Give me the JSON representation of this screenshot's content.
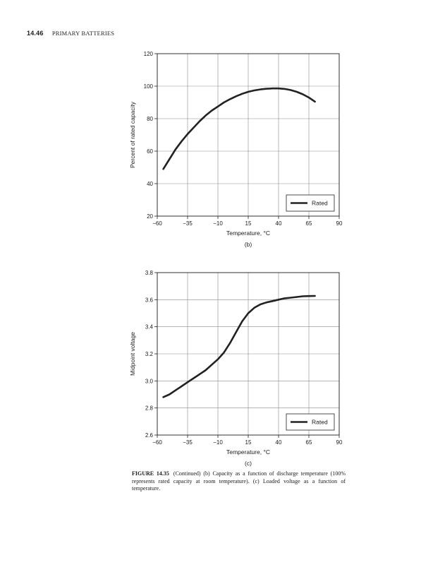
{
  "page": {
    "number": "14.46",
    "running_head": "PRIMARY BATTERIES"
  },
  "caption": {
    "label": "FIGURE 14.35",
    "text": "(Continued) (b) Capacity as a function of discharge temperature (100% represents rated capacity at room temperature). (c) Loaded voltage as a function of temperature."
  },
  "chart_data": [
    {
      "type": "line",
      "panel_label": "(b)",
      "xlabel": "Temperature, °C",
      "ylabel": "Percent of rated capacity",
      "xlim": [
        -60,
        90
      ],
      "ylim": [
        20,
        120
      ],
      "x_ticks": [
        "−60",
        "−35",
        "−10",
        "15",
        "40",
        "65",
        "90"
      ],
      "y_ticks": [
        "20",
        "40",
        "60",
        "80",
        "100",
        "120"
      ],
      "grid": true,
      "legend": {
        "placement": "bottom-right",
        "entries": [
          "Rated"
        ]
      },
      "series": [
        {
          "name": "Rated",
          "color": "#222222",
          "x": [
            -55,
            -50,
            -45,
            -40,
            -35,
            -30,
            -25,
            -20,
            -15,
            -10,
            -5,
            0,
            5,
            10,
            15,
            20,
            25,
            30,
            35,
            40,
            45,
            50,
            55,
            60,
            65,
            70
          ],
          "y": [
            49,
            55,
            61,
            66,
            70.5,
            74.5,
            78.5,
            82,
            85,
            87.5,
            90,
            92,
            93.8,
            95.3,
            96.5,
            97.4,
            98,
            98.4,
            98.6,
            98.6,
            98.3,
            97.6,
            96.5,
            95,
            93,
            90.5
          ]
        }
      ]
    },
    {
      "type": "line",
      "panel_label": "(c)",
      "xlabel": "Temperature, °C",
      "ylabel": "Midpoint voltage",
      "xlim": [
        -60,
        90
      ],
      "ylim": [
        2.6,
        3.8
      ],
      "x_ticks": [
        "−60",
        "−35",
        "−10",
        "15",
        "40",
        "65",
        "90"
      ],
      "y_ticks": [
        "2.6",
        "2.8",
        "3.0",
        "3.2",
        "3.4",
        "3.6",
        "3.8"
      ],
      "grid": true,
      "legend": {
        "placement": "bottom-right",
        "entries": [
          "Rated"
        ]
      },
      "series": [
        {
          "name": "Rated",
          "color": "#222222",
          "x": [
            -55,
            -50,
            -45,
            -40,
            -35,
            -30,
            -25,
            -20,
            -15,
            -10,
            -5,
            0,
            5,
            10,
            15,
            20,
            25,
            30,
            35,
            40,
            45,
            50,
            55,
            60,
            65,
            70
          ],
          "y": [
            2.88,
            2.9,
            2.93,
            2.96,
            2.99,
            3.02,
            3.05,
            3.08,
            3.12,
            3.16,
            3.21,
            3.28,
            3.36,
            3.44,
            3.5,
            3.54,
            3.565,
            3.58,
            3.59,
            3.6,
            3.61,
            3.615,
            3.62,
            3.625,
            3.627,
            3.628
          ]
        }
      ]
    }
  ]
}
